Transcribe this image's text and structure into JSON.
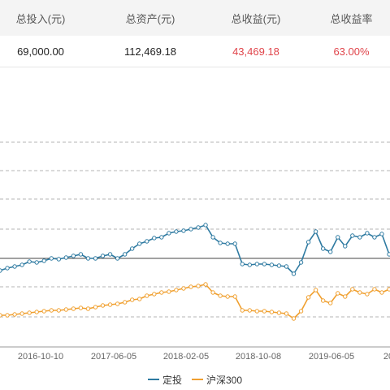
{
  "summary": {
    "headers": [
      "总投入(元)",
      "总资产(元)",
      "总收益(元)",
      "总收益率"
    ],
    "values": [
      "69,000.00",
      "112,469.18",
      "43,469.18",
      "63.00%"
    ]
  },
  "colors": {
    "dingtou": "#2e7aa1",
    "hs300": "#f0a030",
    "profit": "#e0454b",
    "grid": "#b5b5b5",
    "baseline": "#444444"
  },
  "chart_data": {
    "type": "line",
    "x_ticks": [
      "2016-10-10",
      "2017-06-05",
      "2018-02-05",
      "2018-10-08",
      "2019-06-05",
      "20"
    ],
    "grid": true,
    "legend_position": "bottom",
    "series": [
      {
        "name": "定投",
        "values": [
          333,
          330,
          328,
          326,
          322,
          323,
          321,
          318,
          319,
          317,
          315,
          313,
          318,
          318,
          315,
          313,
          318,
          313,
          306,
          300,
          297,
          293,
          292,
          287,
          285,
          284,
          282,
          280,
          277,
          292,
          299,
          300,
          300,
          325,
          326,
          325,
          325,
          326,
          327,
          328,
          337,
          323,
          298,
          285,
          306,
          310,
          292,
          303,
          290,
          292,
          287,
          292,
          288,
          313
        ]
      },
      {
        "name": "沪深300",
        "values": [
          388,
          388,
          387,
          386,
          385,
          384,
          383,
          382,
          382,
          381,
          380,
          379,
          380,
          378,
          376,
          375,
          374,
          372,
          369,
          368,
          364,
          362,
          360,
          359,
          357,
          355,
          353,
          352,
          350,
          360,
          364,
          365,
          365,
          382,
          382,
          383,
          383,
          384,
          385,
          386,
          392,
          383,
          366,
          357,
          370,
          373,
          361,
          365,
          356,
          360,
          362,
          356,
          360,
          356
        ]
      }
    ]
  }
}
